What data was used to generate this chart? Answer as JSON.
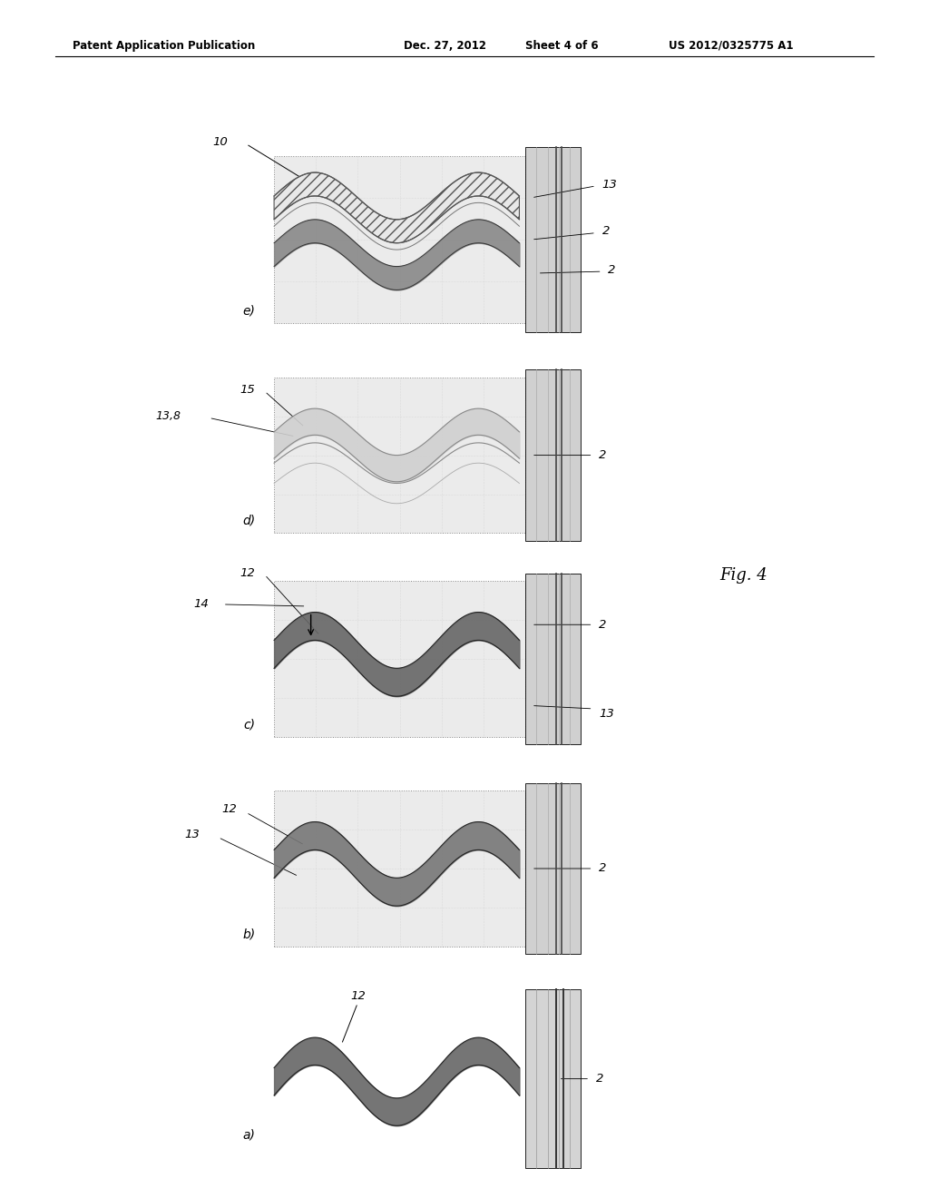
{
  "header": "Patent Application Publication    Dec. 27, 2012  Sheet 4 of 6    US 2012/0325775 A1",
  "fig_label": "Fig. 4",
  "bg_color": "#ffffff",
  "panels": [
    {
      "id": "a",
      "label": "a)",
      "bx": 0.295,
      "by": 0.042,
      "bw": 0.33,
      "bh": 0.115,
      "has_main_box": false
    },
    {
      "id": "b",
      "label": "b)",
      "bx": 0.295,
      "by": 0.21,
      "bw": 0.33,
      "bh": 0.13,
      "has_main_box": true
    },
    {
      "id": "c",
      "label": "c)",
      "bx": 0.295,
      "by": 0.385,
      "bw": 0.33,
      "bh": 0.13,
      "has_main_box": true
    },
    {
      "id": "d",
      "label": "d)",
      "bx": 0.295,
      "by": 0.555,
      "bw": 0.33,
      "bh": 0.13,
      "has_main_box": true
    },
    {
      "id": "e",
      "label": "e)",
      "bx": 0.295,
      "by": 0.73,
      "bw": 0.33,
      "bh": 0.14,
      "has_main_box": true
    }
  ]
}
